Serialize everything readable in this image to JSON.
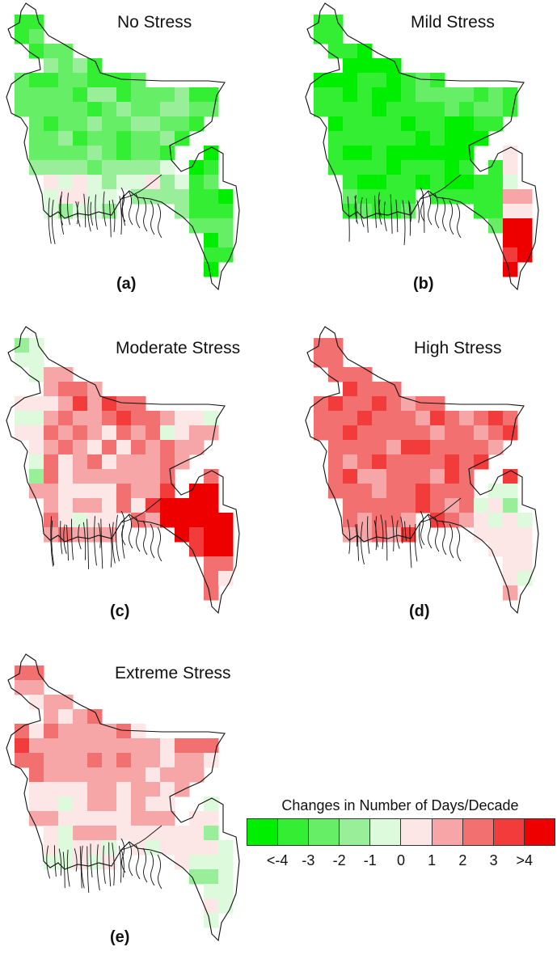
{
  "figure": {
    "panels": [
      {
        "id": "a",
        "title": "No Stress",
        "label": "(a)",
        "pattern": "green-strong-north-east"
      },
      {
        "id": "b",
        "title": "Mild Stress",
        "label": "(b)",
        "pattern": "green-dominant-red-southeast"
      },
      {
        "id": "c",
        "title": "Moderate Stress",
        "label": "(c)",
        "pattern": "red-central-east"
      },
      {
        "id": "d",
        "title": "High Stress",
        "label": "(d)",
        "pattern": "red-dominant-light-east"
      },
      {
        "id": "e",
        "title": "Extreme Stress",
        "label": "(e)",
        "pattern": "pink-north-light-south"
      }
    ],
    "legend": {
      "title": "Changes in Number of Days/Decade",
      "colors": [
        "#00ee00",
        "#33ee33",
        "#66ee66",
        "#99ee99",
        "#ddfadd",
        "#fde6e6",
        "#f6a6a6",
        "#f27070",
        "#f23c3c",
        "#ee0000"
      ],
      "ticks": [
        "<-4",
        "-3",
        "-2",
        "-1",
        "0",
        "1",
        "2",
        "3",
        ">4"
      ]
    }
  }
}
